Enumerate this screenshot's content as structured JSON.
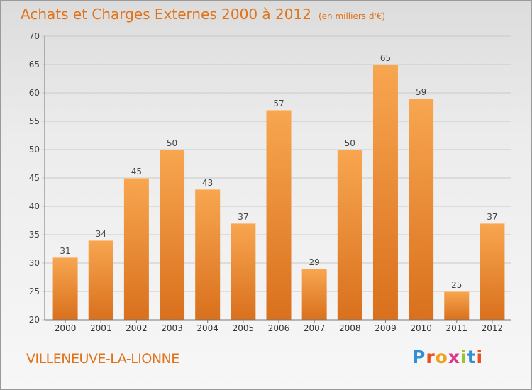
{
  "header": {
    "title": "Achats et Charges Externes 2000 à 2012",
    "unit_note": "(en milliers d'€)"
  },
  "footer": {
    "commune": "VILLENEUVE-LA-LIONNE",
    "brand": "Proxiti",
    "brand_letter_colors": [
      "#2f8fd8",
      "#e8501f",
      "#f0a21a",
      "#d93a8a",
      "#9bc42b",
      "#2f8fd8",
      "#e8501f"
    ]
  },
  "chart_data": {
    "type": "bar",
    "categories": [
      "2000",
      "2001",
      "2002",
      "2003",
      "2004",
      "2005",
      "2006",
      "2007",
      "2008",
      "2009",
      "2010",
      "2011",
      "2012"
    ],
    "values": [
      31,
      34,
      45,
      50,
      43,
      37,
      57,
      29,
      50,
      65,
      59,
      25,
      37
    ],
    "title": "Achats et Charges Externes 2000 à 2012",
    "ylim": [
      20,
      70
    ],
    "yticks": [
      20,
      25,
      30,
      35,
      40,
      45,
      50,
      55,
      60,
      65,
      70
    ],
    "grid": true,
    "bar_color_top": "#f8a650",
    "bar_color_bottom": "#d9701d",
    "data_labels": true
  }
}
